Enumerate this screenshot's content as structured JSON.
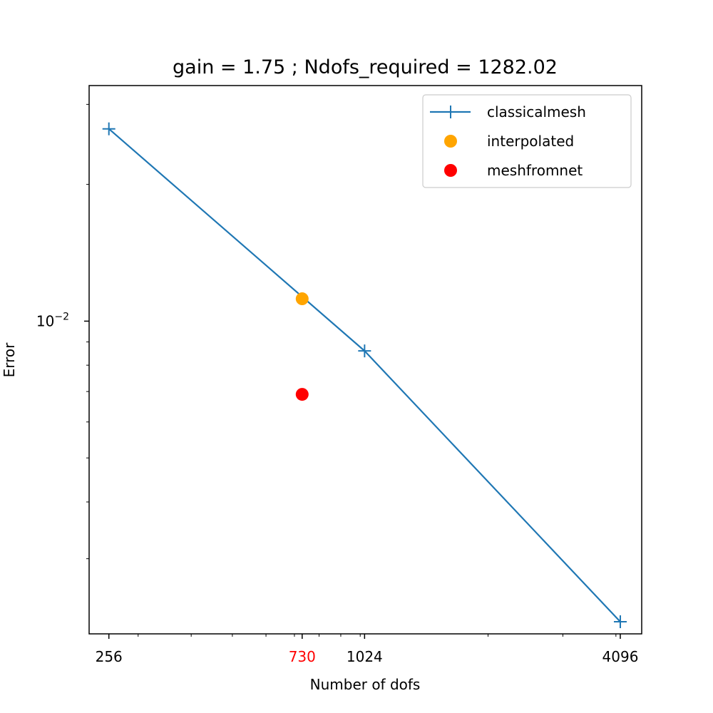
{
  "chart_data": {
    "type": "line",
    "title": "gain = 1.75 ; Ndofs_required = 1282.02",
    "xlabel": "Number of dofs",
    "ylabel": "Error",
    "xscale": "log",
    "yscale": "log",
    "xlim": [
      230,
      4600
    ],
    "ylim": [
      0.00205,
      0.033
    ],
    "xticks": [
      {
        "value": 256,
        "label": "256",
        "color": "#000000"
      },
      {
        "value": 730,
        "label": "730",
        "color": "#ff0000"
      },
      {
        "value": 1024,
        "label": "1024",
        "color": "#000000"
      },
      {
        "value": 4096,
        "label": "4096",
        "color": "#000000"
      }
    ],
    "yticks": [
      {
        "value": 0.01,
        "base": "10",
        "exp": "−2"
      }
    ],
    "series": [
      {
        "name": "classicalmesh",
        "kind": "line",
        "marker": "+",
        "color": "#1f77b4",
        "x": [
          256,
          1024,
          4096
        ],
        "y": [
          0.0265,
          0.0086,
          0.00218
        ]
      },
      {
        "name": "interpolated",
        "kind": "point",
        "marker": "o",
        "color": "#ffa500",
        "x": [
          730
        ],
        "y": [
          0.0112
        ]
      },
      {
        "name": "meshfromnet",
        "kind": "point",
        "marker": "o",
        "color": "#ff0000",
        "x": [
          730
        ],
        "y": [
          0.0069
        ]
      }
    ],
    "legend": "top-right",
    "grid": false
  }
}
